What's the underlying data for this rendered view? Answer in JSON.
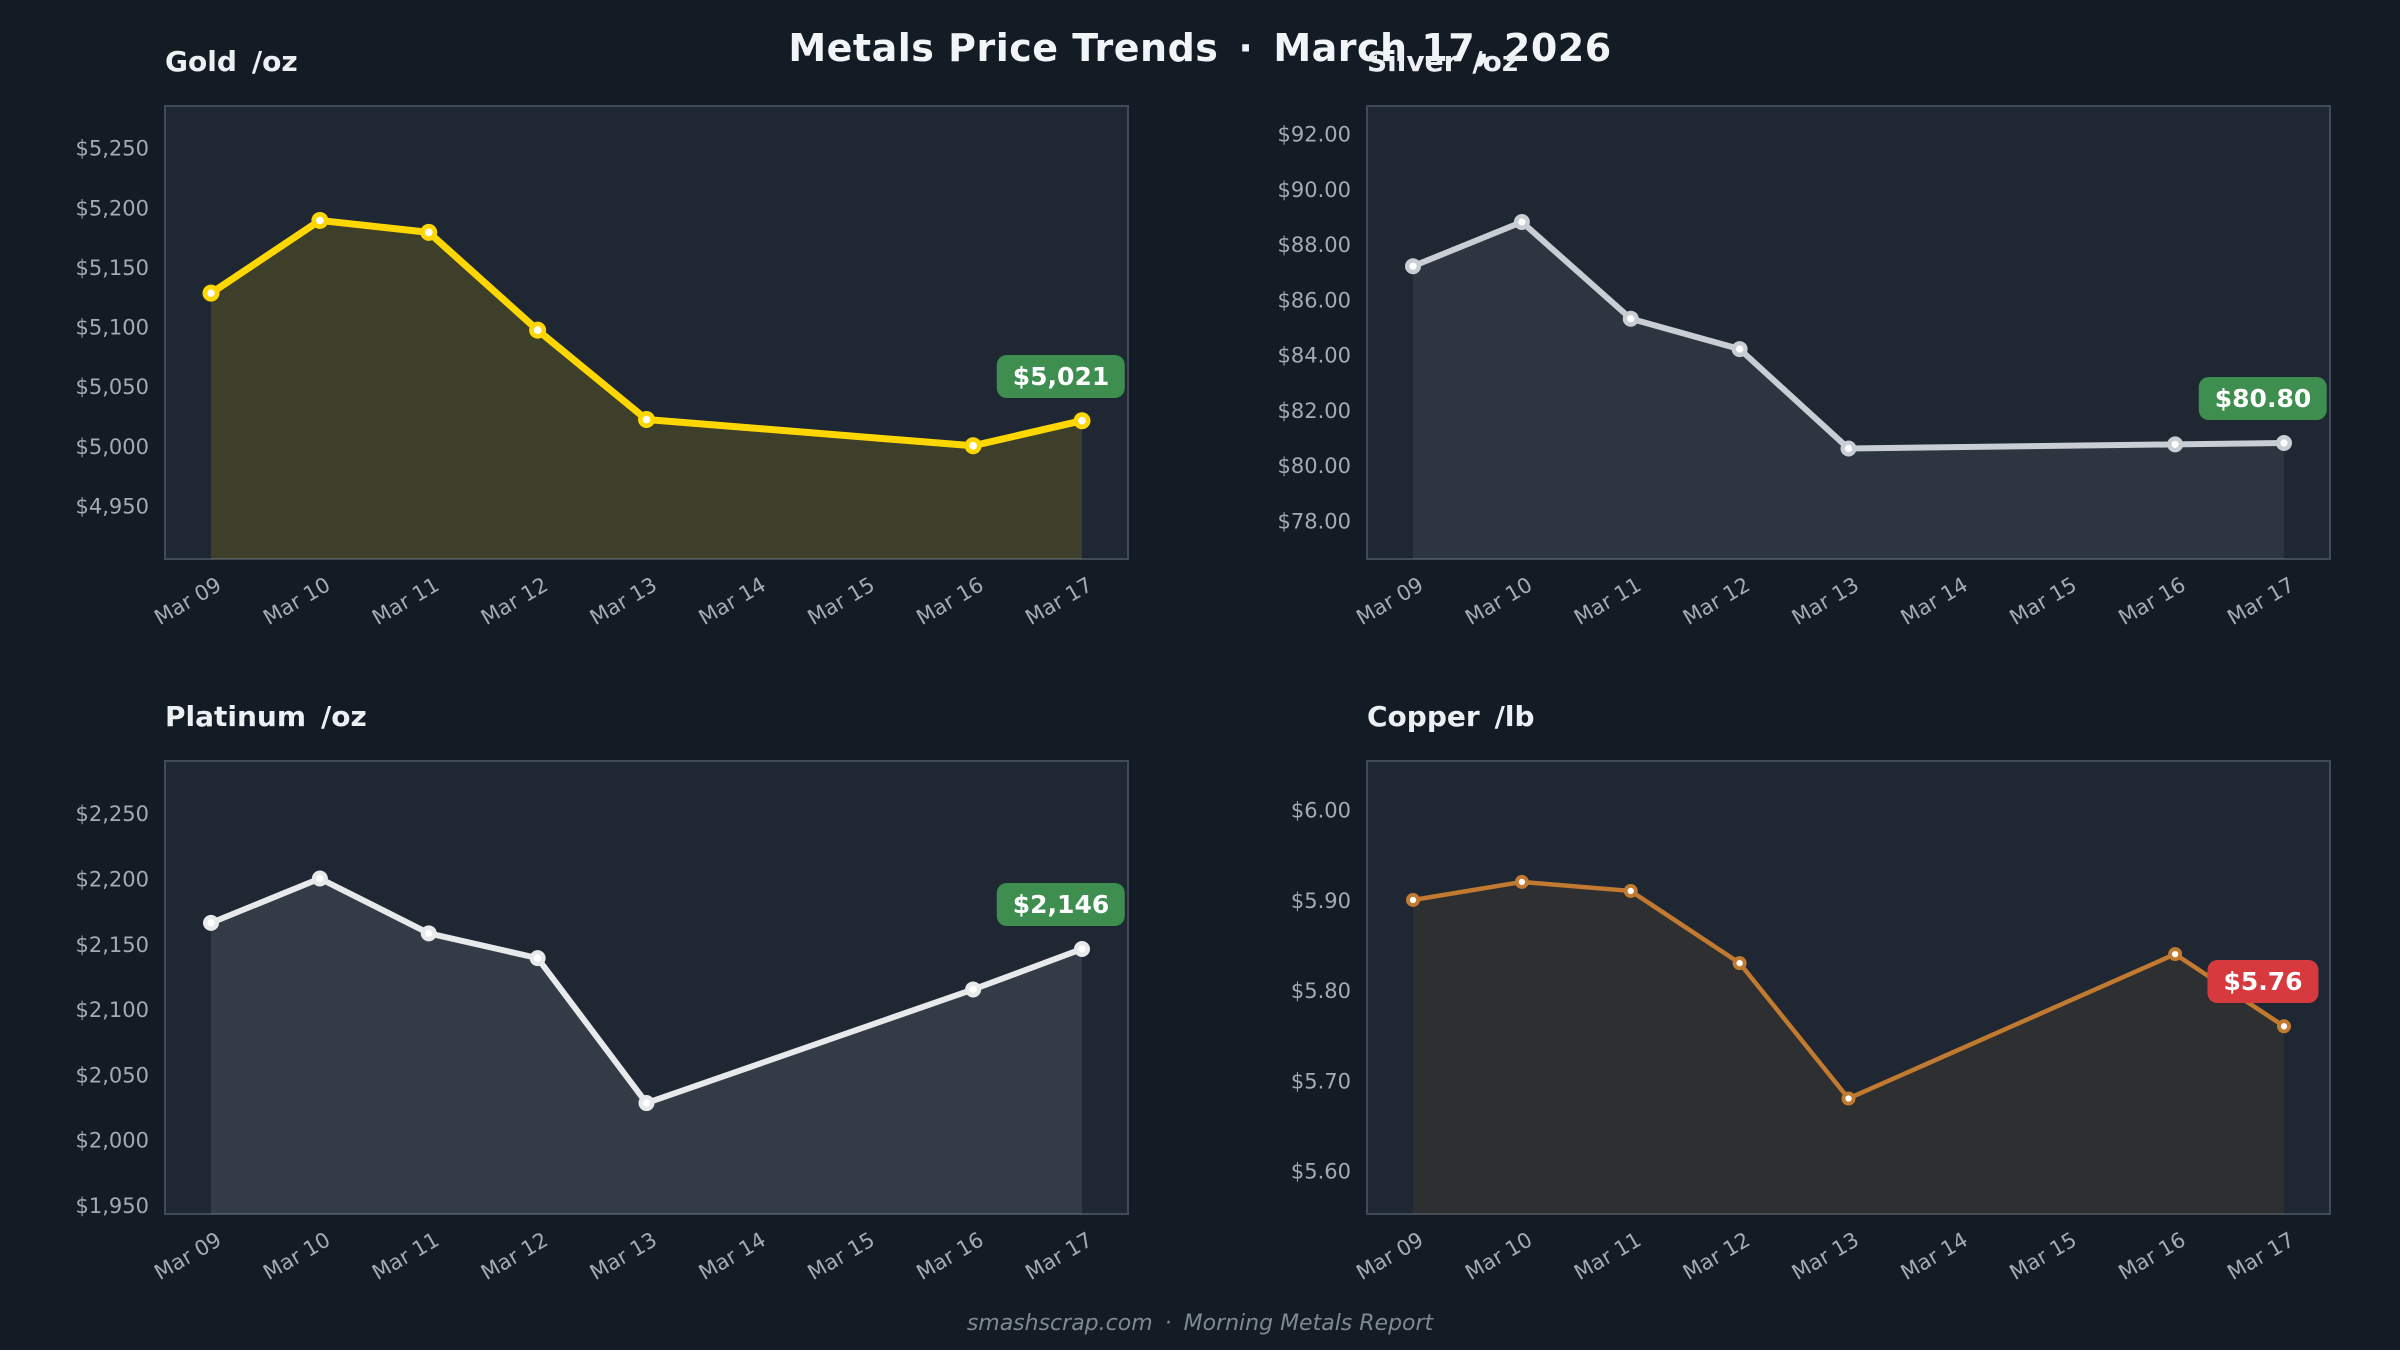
{
  "page": {
    "title": "Metals Price Trends",
    "separator": "·",
    "date": "March 17, 2026",
    "footer": {
      "site": "smashscrap.com",
      "separator": "·",
      "report": "Morning Metals Report"
    }
  },
  "colors": {
    "background": "#131b25",
    "plot_background": "#1e2732",
    "plot_border": "#414b57",
    "axis_label": "#a2abb6",
    "badge_up": "#3e8e50",
    "badge_down": "#d63a3f",
    "title_text": "#f2f5f8",
    "footer_text": "#7f8993",
    "gold_line": "#ffd700",
    "silver_line": "#c9ced4",
    "platinum_line": "#e8e9ea",
    "copper_line": "#c17a30"
  },
  "chart_data": [
    {
      "type": "line",
      "title": "Gold",
      "unit": "/oz",
      "x": [
        "Mar 09",
        "Mar 10",
        "Mar 11",
        "Mar 12",
        "Mar 13",
        "Mar 14",
        "Mar 15",
        "Mar 16",
        "Mar 17"
      ],
      "series": [
        {
          "name": "Gold price ($/oz)",
          "dates": [
            "Mar 09",
            "Mar 10",
            "Mar 11",
            "Mar 12",
            "Mar 13",
            "Mar 16",
            "Mar 17"
          ],
          "x_indices": [
            0,
            1,
            2,
            3,
            4,
            7,
            8
          ],
          "values": [
            5128,
            5189,
            5179,
            5097,
            5022,
            5000,
            5021
          ]
        }
      ],
      "ylim": [
        4905,
        5285
      ],
      "y_ticks": [
        {
          "value": 4950,
          "label": "$4,950"
        },
        {
          "value": 5000,
          "label": "$5,000"
        },
        {
          "value": 5050,
          "label": "$5,050"
        },
        {
          "value": 5100,
          "label": "$5,100"
        },
        {
          "value": 5150,
          "label": "$5,150"
        },
        {
          "value": 5200,
          "label": "$5,200"
        },
        {
          "value": 5250,
          "label": "$5,250"
        }
      ],
      "grid": false,
      "legend": null,
      "last_price_label": "$5,021",
      "trend": "up",
      "line_color": "#ffd700",
      "fill_opacity": 0.14,
      "line_width": 7,
      "marker_size": 8.5
    },
    {
      "type": "line",
      "title": "Silver",
      "unit": "/oz",
      "x": [
        "Mar 09",
        "Mar 10",
        "Mar 11",
        "Mar 12",
        "Mar 13",
        "Mar 14",
        "Mar 15",
        "Mar 16",
        "Mar 17"
      ],
      "series": [
        {
          "name": "Silver price ($/oz)",
          "dates": [
            "Mar 09",
            "Mar 10",
            "Mar 11",
            "Mar 12",
            "Mar 13",
            "Mar 16",
            "Mar 17"
          ],
          "x_indices": [
            0,
            1,
            2,
            3,
            4,
            7,
            8
          ],
          "values": [
            87.2,
            88.8,
            85.3,
            84.2,
            80.6,
            80.75,
            80.8
          ]
        }
      ],
      "ylim": [
        76.6,
        93.0
      ],
      "y_ticks": [
        {
          "value": 78,
          "label": "$78.00"
        },
        {
          "value": 80,
          "label": "$80.00"
        },
        {
          "value": 82,
          "label": "$82.00"
        },
        {
          "value": 84,
          "label": "$84.00"
        },
        {
          "value": 86,
          "label": "$86.00"
        },
        {
          "value": 88,
          "label": "$88.00"
        },
        {
          "value": 90,
          "label": "$90.00"
        },
        {
          "value": 92,
          "label": "$92.00"
        }
      ],
      "grid": false,
      "legend": null,
      "last_price_label": "$80.80",
      "trend": "up",
      "line_color": "#c9ced4",
      "fill_opacity": 0.09,
      "line_width": 6,
      "marker_size": 8
    },
    {
      "type": "line",
      "title": "Platinum",
      "unit": "/oz",
      "x": [
        "Mar 09",
        "Mar 10",
        "Mar 11",
        "Mar 12",
        "Mar 13",
        "Mar 14",
        "Mar 15",
        "Mar 16",
        "Mar 17"
      ],
      "series": [
        {
          "name": "Platinum price ($/oz)",
          "dates": [
            "Mar 09",
            "Mar 10",
            "Mar 11",
            "Mar 12",
            "Mar 13",
            "Mar 16",
            "Mar 17"
          ],
          "x_indices": [
            0,
            1,
            2,
            3,
            4,
            7,
            8
          ],
          "values": [
            2166,
            2200,
            2158,
            2139,
            2028,
            2115,
            2146
          ]
        }
      ],
      "ylim": [
        1943,
        2290
      ],
      "y_ticks": [
        {
          "value": 1950,
          "label": "$1,950"
        },
        {
          "value": 2000,
          "label": "$2,000"
        },
        {
          "value": 2050,
          "label": "$2,050"
        },
        {
          "value": 2100,
          "label": "$2,100"
        },
        {
          "value": 2150,
          "label": "$2,150"
        },
        {
          "value": 2200,
          "label": "$2,200"
        },
        {
          "value": 2250,
          "label": "$2,250"
        }
      ],
      "grid": false,
      "legend": null,
      "last_price_label": "$2,146",
      "trend": "up",
      "line_color": "#e8e9ea",
      "fill_opacity": 0.11,
      "line_width": 6,
      "marker_size": 8
    },
    {
      "type": "line",
      "title": "Copper",
      "unit": "/lb",
      "x": [
        "Mar 09",
        "Mar 10",
        "Mar 11",
        "Mar 12",
        "Mar 13",
        "Mar 14",
        "Mar 15",
        "Mar 16",
        "Mar 17"
      ],
      "series": [
        {
          "name": "Copper price ($/lb)",
          "dates": [
            "Mar 09",
            "Mar 10",
            "Mar 11",
            "Mar 12",
            "Mar 13",
            "Mar 16",
            "Mar 17"
          ],
          "x_indices": [
            0,
            1,
            2,
            3,
            4,
            7,
            8
          ],
          "values": [
            5.9,
            5.92,
            5.91,
            5.83,
            5.68,
            5.84,
            5.76
          ]
        }
      ],
      "ylim": [
        5.552,
        6.054
      ],
      "y_ticks": [
        {
          "value": 5.6,
          "label": "$5.60"
        },
        {
          "value": 5.7,
          "label": "$5.70"
        },
        {
          "value": 5.8,
          "label": "$5.80"
        },
        {
          "value": 5.9,
          "label": "$5.90"
        },
        {
          "value": 6.0,
          "label": "$6.00"
        }
      ],
      "grid": false,
      "legend": null,
      "last_price_label": "$5.76",
      "trend": "down",
      "line_color": "#c17a30",
      "fill_opacity": 0.1,
      "line_width": 4.5,
      "marker_size": 7
    }
  ]
}
